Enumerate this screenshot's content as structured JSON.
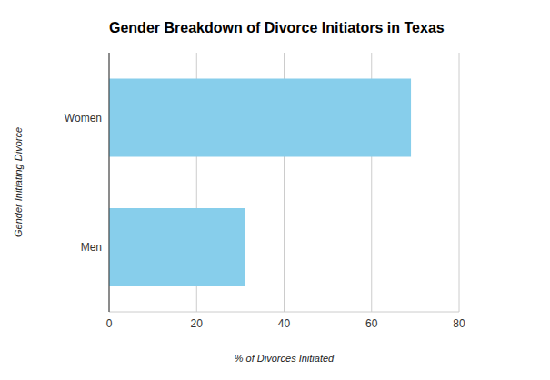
{
  "chart_data": {
    "type": "bar",
    "title": "Gender Breakdown of Divorce Initiators in Texas",
    "x_label": "% of Divorces Initiated",
    "y_label": "Gender Initiating Divorce",
    "categories": [
      "Women",
      "Men"
    ],
    "values": [
      69,
      31
    ],
    "color": "#87ceeb",
    "orientation": "horizontal",
    "xlim": [
      0,
      80
    ],
    "xticks": [
      0,
      20,
      40,
      60,
      80
    ],
    "grid": true
  }
}
